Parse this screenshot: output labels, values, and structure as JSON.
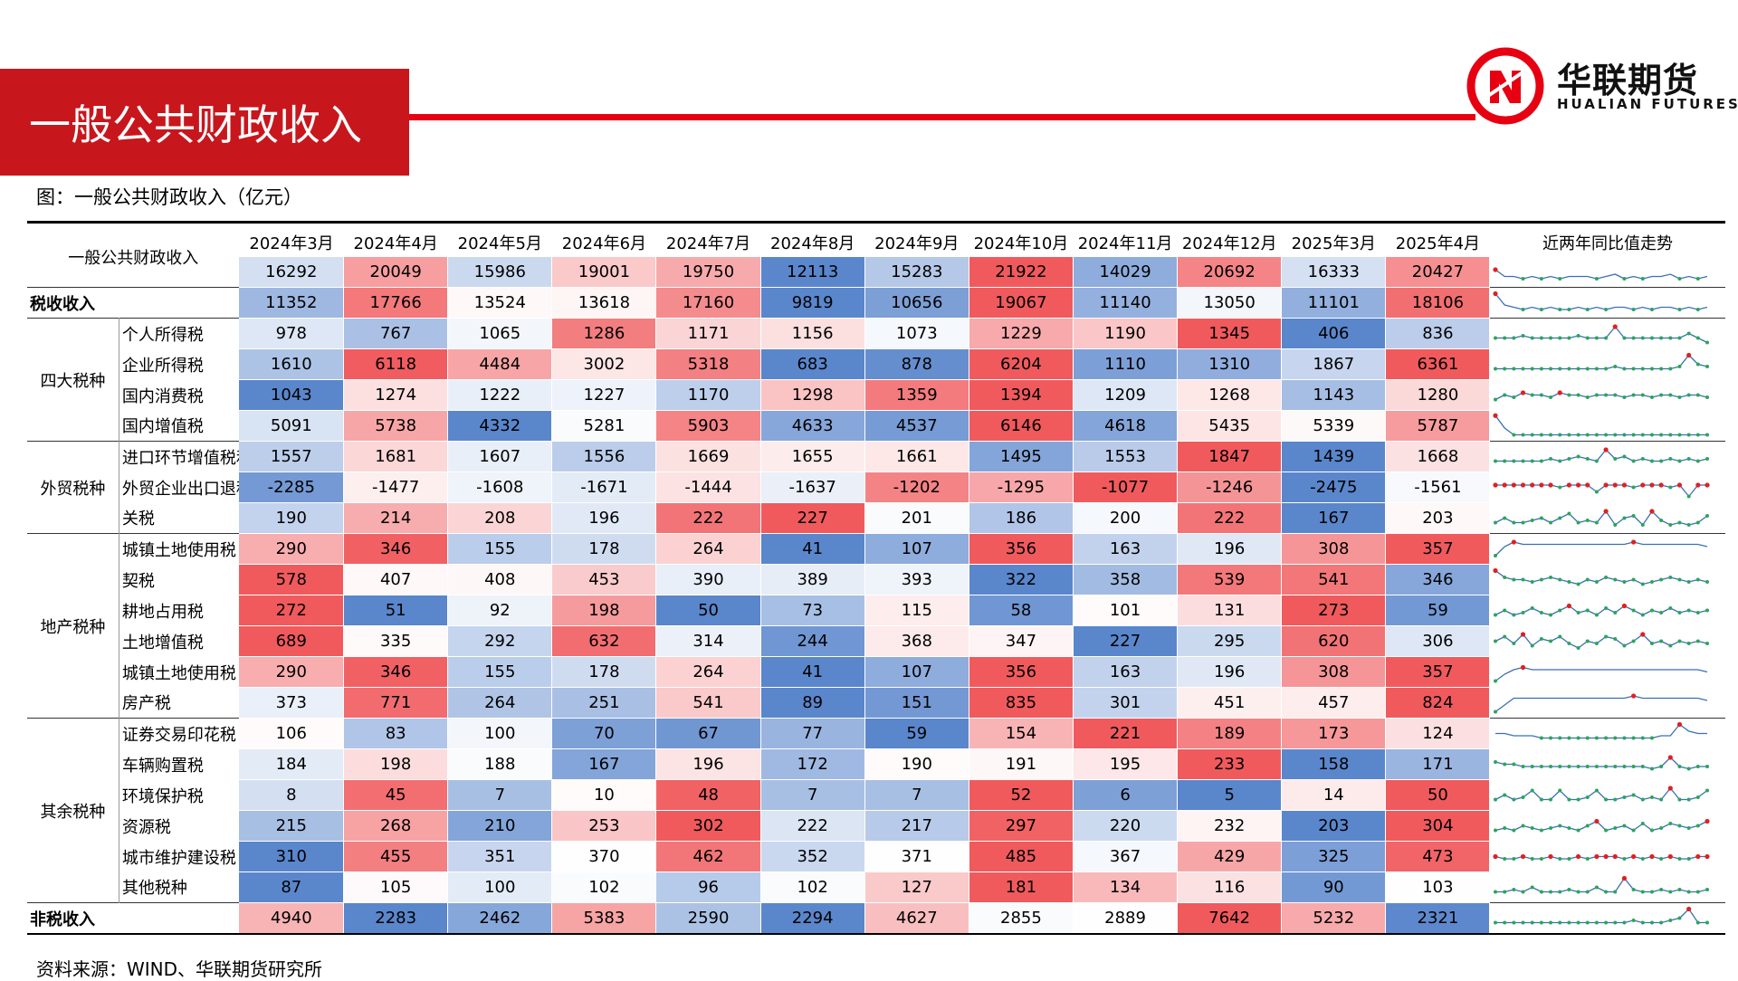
{
  "header": {
    "title": "一般公共财政收入",
    "brand_cn": "华联期货",
    "brand_en": "HUALIAN FUTURES"
  },
  "caption": "图：一般公共财政收入（亿元）",
  "source": "资料来源：WIND、华联期货研究所",
  "colors": {
    "brand_red": "#c8161d",
    "line_red": "#e60012",
    "high": "#f05a5d",
    "low": "#5a86cc",
    "spark_line": "#3b6fb6",
    "spark_marker_green": "#2aa55a",
    "spark_marker_red": "#e02020"
  },
  "table": {
    "corner_label": "一般公共财政收入",
    "trend_header": "近两年同比值走势",
    "months": [
      "2024年3月",
      "2024年4月",
      "2024年5月",
      "2024年6月",
      "2024年7月",
      "2024年8月",
      "2024年9月",
      "2024年10月",
      "2024年11月",
      "2024年12月",
      "2025年3月",
      "2025年4月"
    ],
    "total_values": [
      16292,
      20049,
      15986,
      19001,
      19750,
      12113,
      15283,
      21922,
      14029,
      20692,
      16333,
      20427
    ],
    "total_spark": [
      0.6,
      0.3,
      0.3,
      0.2,
      0.3,
      0.2,
      0.3,
      0.2,
      0.3,
      0.3,
      0.3,
      0.2,
      0.3,
      0.4,
      0.2,
      0.3,
      0.2,
      0.3,
      0.3,
      0.4,
      0.2,
      0.3,
      0.2,
      0.3
    ],
    "sections": [
      {
        "label": "税收收入",
        "rows": [
          {
            "name": "税收收入",
            "values": [
              11352,
              17766,
              13524,
              13618,
              17160,
              9819,
              10656,
              19067,
              11140,
              13050,
              11101,
              18106
            ],
            "spark": [
              0.9,
              0.4,
              0.3,
              0.2,
              0.3,
              0.2,
              0.3,
              0.2,
              0.2,
              0.3,
              0.2,
              0.3,
              0.2,
              0.3,
              0.3,
              0.2,
              0.3,
              0.2,
              0.3,
              0.3,
              0.2,
              0.3,
              0.2,
              0.3
            ],
            "markers": false
          }
        ]
      },
      {
        "label": "四大税种",
        "rows": [
          {
            "name": "个人所得税",
            "values": [
              978,
              767,
              1065,
              1286,
              1171,
              1156,
              1073,
              1229,
              1190,
              1345,
              406,
              836
            ],
            "spark": [
              0.3,
              0.3,
              0.3,
              0.4,
              0.3,
              0.3,
              0.3,
              0.3,
              0.3,
              0.4,
              0.3,
              0.3,
              0.3,
              0.8,
              0.3,
              0.3,
              0.3,
              0.3,
              0.3,
              0.3,
              0.3,
              0.5,
              0.3,
              0.1
            ],
            "markers": true
          },
          {
            "name": "企业所得税",
            "values": [
              1610,
              6118,
              4484,
              3002,
              5318,
              683,
              878,
              6204,
              1110,
              1310,
              1867,
              6361
            ],
            "spark": [
              0.3,
              0.3,
              0.3,
              0.3,
              0.3,
              0.3,
              0.3,
              0.3,
              0.3,
              0.3,
              0.3,
              0.3,
              0.3,
              0.4,
              0.3,
              0.3,
              0.3,
              0.3,
              0.3,
              0.3,
              0.4,
              0.9,
              0.5,
              0.4
            ],
            "markers": true
          },
          {
            "name": "国内消费税",
            "values": [
              1043,
              1274,
              1222,
              1227,
              1170,
              1298,
              1359,
              1394,
              1209,
              1268,
              1143,
              1280
            ],
            "spark": [
              0.3,
              0.5,
              0.4,
              0.6,
              0.5,
              0.5,
              0.4,
              0.6,
              0.5,
              0.5,
              0.4,
              0.5,
              0.5,
              0.5,
              0.4,
              0.5,
              0.5,
              0.4,
              0.5,
              0.5,
              0.4,
              0.5,
              0.5,
              0.4
            ],
            "markers": true
          },
          {
            "name": "国内增值税",
            "values": [
              5091,
              5738,
              4332,
              5281,
              5903,
              4633,
              4537,
              6146,
              4618,
              5435,
              5339,
              5787
            ],
            "spark": [
              0.95,
              0.4,
              0.1,
              0.1,
              0.1,
              0.1,
              0.1,
              0.1,
              0.1,
              0.1,
              0.1,
              0.1,
              0.1,
              0.1,
              0.1,
              0.1,
              0.1,
              0.1,
              0.1,
              0.1,
              0.1,
              0.1,
              0.1,
              0.1
            ],
            "markers": false
          }
        ]
      },
      {
        "label": "外贸税种",
        "rows": [
          {
            "name": "进口环节增值税和消费税",
            "values": [
              1557,
              1681,
              1607,
              1556,
              1669,
              1655,
              1661,
              1495,
              1553,
              1847,
              1439,
              1668
            ],
            "spark": [
              0.3,
              0.3,
              0.3,
              0.3,
              0.3,
              0.3,
              0.4,
              0.3,
              0.4,
              0.5,
              0.4,
              0.3,
              0.8,
              0.4,
              0.5,
              0.3,
              0.4,
              0.3,
              0.3,
              0.4,
              0.3,
              0.4,
              0.3,
              0.4
            ],
            "markers": true
          },
          {
            "name": "外贸企业出口退税",
            "values": [
              -2285,
              -1477,
              -1608,
              -1671,
              -1444,
              -1637,
              -1202,
              -1295,
              -1077,
              -1246,
              -2475,
              -1561
            ],
            "spark": [
              0.6,
              0.6,
              0.6,
              0.6,
              0.6,
              0.6,
              0.6,
              0.5,
              0.6,
              0.6,
              0.6,
              0.3,
              0.6,
              0.6,
              0.6,
              0.5,
              0.6,
              0.6,
              0.6,
              0.5,
              0.6,
              0.1,
              0.6,
              0.6
            ],
            "markers": true
          },
          {
            "name": "关税",
            "values": [
              190,
              214,
              208,
              196,
              222,
              227,
              201,
              186,
              200,
              222,
              167,
              203
            ],
            "spark": [
              0.3,
              0.5,
              0.3,
              0.3,
              0.4,
              0.5,
              0.3,
              0.5,
              0.7,
              0.3,
              0.4,
              0.3,
              0.8,
              0.2,
              0.5,
              0.6,
              0.2,
              0.8,
              0.4,
              0.2,
              0.3,
              0.2,
              0.3,
              0.6
            ],
            "markers": true
          }
        ]
      },
      {
        "label": "地产税种",
        "rows": [
          {
            "name": "城镇土地使用税",
            "values": [
              290,
              346,
              155,
              178,
              264,
              41,
              107,
              356,
              163,
              196,
              308,
              357
            ],
            "spark": [
              0.2,
              0.6,
              0.8,
              0.7,
              0.7,
              0.7,
              0.7,
              0.7,
              0.7,
              0.7,
              0.7,
              0.7,
              0.7,
              0.7,
              0.7,
              0.8,
              0.7,
              0.7,
              0.7,
              0.7,
              0.7,
              0.7,
              0.7,
              0.6
            ],
            "markers": false
          },
          {
            "name": "契税",
            "values": [
              578,
              407,
              408,
              453,
              390,
              389,
              393,
              322,
              358,
              539,
              541,
              346
            ],
            "spark": [
              0.9,
              0.6,
              0.5,
              0.5,
              0.4,
              0.5,
              0.6,
              0.5,
              0.4,
              0.3,
              0.5,
              0.4,
              0.6,
              0.5,
              0.4,
              0.5,
              0.3,
              0.4,
              0.5,
              0.6,
              0.5,
              0.4,
              0.5,
              0.4
            ],
            "markers": true
          },
          {
            "name": "耕地占用税",
            "values": [
              272,
              51,
              92,
              198,
              50,
              73,
              115,
              58,
              101,
              131,
              273,
              59
            ],
            "spark": [
              0.3,
              0.5,
              0.3,
              0.4,
              0.6,
              0.4,
              0.3,
              0.5,
              0.7,
              0.4,
              0.5,
              0.3,
              0.6,
              0.4,
              0.7,
              0.5,
              0.3,
              0.5,
              0.4,
              0.6,
              0.4,
              0.5,
              0.4,
              0.5
            ],
            "markers": true
          },
          {
            "name": "土地增值税",
            "values": [
              689,
              335,
              292,
              632,
              314,
              244,
              368,
              347,
              227,
              295,
              620,
              306
            ],
            "spark": [
              0.5,
              0.7,
              0.4,
              0.8,
              0.3,
              0.6,
              0.5,
              0.7,
              0.4,
              0.2,
              0.5,
              0.4,
              0.7,
              0.6,
              0.3,
              0.5,
              0.8,
              0.4,
              0.5,
              0.3,
              0.5,
              0.4,
              0.5,
              0.4
            ],
            "markers": true
          },
          {
            "name": "城镇土地使用税",
            "values": [
              290,
              346,
              155,
              178,
              264,
              41,
              107,
              356,
              163,
              196,
              308,
              357
            ],
            "spark": [
              0.1,
              0.4,
              0.6,
              0.7,
              0.6,
              0.6,
              0.6,
              0.6,
              0.6,
              0.6,
              0.6,
              0.6,
              0.6,
              0.6,
              0.6,
              0.6,
              0.6,
              0.6,
              0.6,
              0.6,
              0.6,
              0.6,
              0.6,
              0.5
            ],
            "markers": false
          },
          {
            "name": "房产税",
            "values": [
              373,
              771,
              264,
              251,
              541,
              89,
              151,
              835,
              301,
              451,
              457,
              824
            ],
            "spark": [
              0.1,
              0.4,
              0.7,
              0.7,
              0.7,
              0.7,
              0.7,
              0.7,
              0.7,
              0.7,
              0.7,
              0.7,
              0.7,
              0.7,
              0.7,
              0.8,
              0.7,
              0.7,
              0.7,
              0.7,
              0.7,
              0.7,
              0.7,
              0.6
            ],
            "markers": false
          }
        ]
      },
      {
        "label": "其余税种",
        "rows": [
          {
            "name": "证券交易印花税",
            "values": [
              106,
              83,
              100,
              70,
              67,
              77,
              59,
              154,
              221,
              189,
              173,
              124
            ],
            "spark": [
              0.5,
              0.5,
              0.4,
              0.4,
              0.4,
              0.3,
              0.3,
              0.3,
              0.3,
              0.3,
              0.3,
              0.3,
              0.3,
              0.3,
              0.3,
              0.3,
              0.3,
              0.3,
              0.4,
              0.4,
              0.9,
              0.6,
              0.5,
              0.5
            ],
            "markers": false
          },
          {
            "name": "车辆购置税",
            "values": [
              184,
              198,
              188,
              167,
              196,
              172,
              190,
              191,
              195,
              233,
              158,
              171
            ],
            "spark": [
              0.6,
              0.5,
              0.5,
              0.4,
              0.4,
              0.4,
              0.4,
              0.4,
              0.4,
              0.4,
              0.4,
              0.4,
              0.4,
              0.4,
              0.4,
              0.4,
              0.4,
              0.3,
              0.4,
              0.8,
              0.4,
              0.3,
              0.4,
              0.4
            ],
            "markers": true
          },
          {
            "name": "环境保护税",
            "values": [
              8,
              45,
              7,
              10,
              48,
              7,
              7,
              52,
              6,
              5,
              14,
              50
            ],
            "spark": [
              0.3,
              0.5,
              0.3,
              0.4,
              0.7,
              0.3,
              0.3,
              0.7,
              0.3,
              0.3,
              0.4,
              0.7,
              0.3,
              0.3,
              0.4,
              0.5,
              0.3,
              0.4,
              0.3,
              0.8,
              0.3,
              0.3,
              0.4,
              0.7
            ],
            "markers": true
          },
          {
            "name": "资源税",
            "values": [
              215,
              268,
              210,
              253,
              302,
              222,
              217,
              297,
              220,
              232,
              203,
              304
            ],
            "spark": [
              0.3,
              0.4,
              0.3,
              0.5,
              0.4,
              0.3,
              0.4,
              0.5,
              0.4,
              0.3,
              0.5,
              0.7,
              0.3,
              0.4,
              0.5,
              0.3,
              0.6,
              0.3,
              0.4,
              0.6,
              0.5,
              0.4,
              0.5,
              0.7
            ],
            "markers": true
          },
          {
            "name": "城市维护建设税",
            "values": [
              310,
              455,
              351,
              370,
              462,
              352,
              371,
              485,
              367,
              429,
              325,
              473
            ],
            "spark": [
              0.5,
              0.4,
              0.4,
              0.5,
              0.4,
              0.4,
              0.5,
              0.4,
              0.4,
              0.5,
              0.4,
              0.5,
              0.5,
              0.5,
              0.4,
              0.5,
              0.4,
              0.5,
              0.4,
              0.5,
              0.4,
              0.4,
              0.5,
              0.5
            ],
            "markers": true
          },
          {
            "name": "其他税种",
            "values": [
              87,
              105,
              100,
              102,
              96,
              102,
              127,
              181,
              134,
              116,
              90,
              103
            ],
            "spark": [
              0.3,
              0.3,
              0.4,
              0.3,
              0.5,
              0.3,
              0.3,
              0.3,
              0.4,
              0.3,
              0.3,
              0.5,
              0.3,
              0.3,
              0.9,
              0.4,
              0.3,
              0.3,
              0.4,
              0.3,
              0.4,
              0.3,
              0.3,
              0.4
            ],
            "markers": true
          }
        ]
      },
      {
        "label": "非税收入",
        "rows": [
          {
            "name": "非税收入",
            "values": [
              4940,
              2283,
              2462,
              5383,
              2590,
              2294,
              4627,
              2855,
              2889,
              7642,
              5232,
              2321
            ],
            "spark": [
              0.3,
              0.3,
              0.3,
              0.3,
              0.3,
              0.3,
              0.3,
              0.3,
              0.3,
              0.3,
              0.3,
              0.3,
              0.3,
              0.3,
              0.3,
              0.4,
              0.3,
              0.3,
              0.3,
              0.4,
              0.5,
              0.9,
              0.3,
              0.3
            ],
            "markers": true
          }
        ]
      }
    ]
  }
}
